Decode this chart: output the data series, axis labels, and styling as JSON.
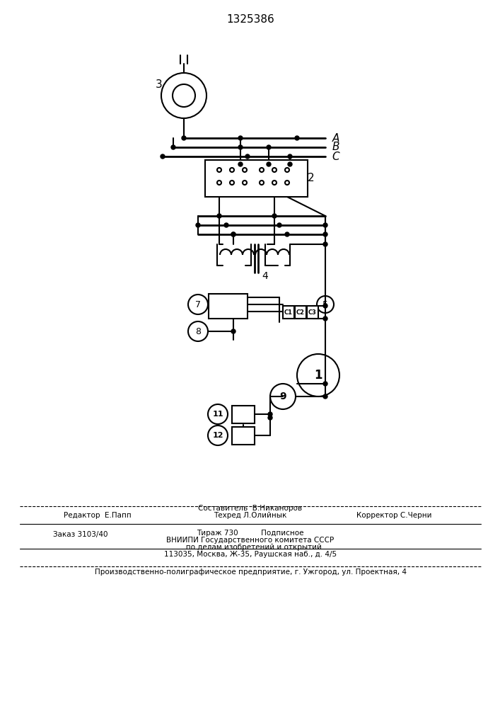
{
  "patent_number": "1325386",
  "bg_color": "#ffffff",
  "line_color": "#000000",
  "fig_width": 7.07,
  "fig_height": 10.0,
  "footer_line1_left": "Редактор  Е.Папп",
  "footer_line1_center": "Составитель  В.Никаноров\nТехред Л.Олийнык",
  "footer_line1_right": "Корректор С.Черни",
  "footer_line2_left": "Заказ 3103/40",
  "footer_line2_center": "Тираж 730        Подписное\nВНИИПИ Государственного комитета СССР\n   по делам изобретений и открытий\n113035, Москва, Ж-35, Раушская наб., д. 4/5",
  "footer_line3": "Производственно-полиграфическое предприятие, г. Ужгород, ул. Проектная, 4"
}
